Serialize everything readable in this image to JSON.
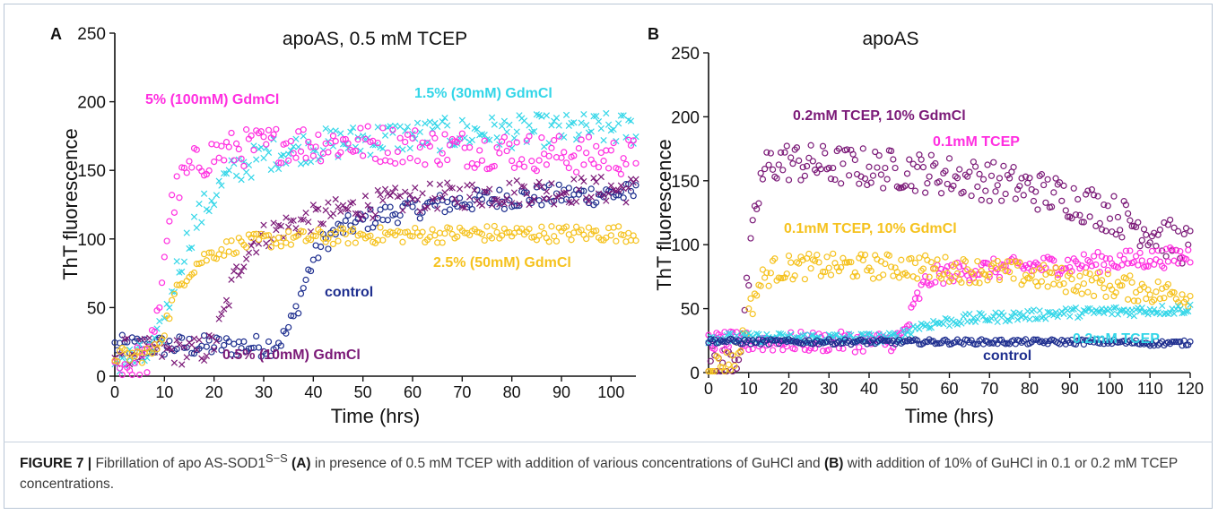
{
  "chart_data": [
    {
      "panel_label": "A",
      "type": "scatter",
      "title": "apoAS, 0.5 mM TCEP",
      "xlabel": "Time (hrs)",
      "ylabel": "ThT fluorescence",
      "xlim": [
        0,
        105
      ],
      "ylim": [
        0,
        250
      ],
      "xticks": [
        0,
        10,
        20,
        30,
        40,
        50,
        60,
        70,
        80,
        90,
        100
      ],
      "yticks": [
        0,
        50,
        100,
        150,
        200,
        250
      ],
      "grid": false,
      "series": [
        {
          "name": "control",
          "color": "#1f2f8f",
          "marker": "circle",
          "x": [
            0,
            5,
            10,
            15,
            20,
            25,
            30,
            32,
            34,
            36,
            38,
            40,
            42,
            44,
            46,
            50,
            55,
            60,
            65,
            70,
            75,
            80,
            85,
            90,
            95,
            100,
            105
          ],
          "y": [
            22,
            22,
            22,
            22,
            22,
            22,
            22,
            23,
            28,
            42,
            65,
            85,
            97,
            104,
            108,
            113,
            118,
            122,
            125,
            127,
            129,
            130,
            131,
            132,
            132,
            133,
            133
          ]
        },
        {
          "name": "0.5% (10mM) GdmCl",
          "color": "#7b1a78",
          "marker": "x",
          "x": [
            0,
            5,
            10,
            15,
            18,
            20,
            22,
            24,
            26,
            28,
            30,
            32,
            35,
            40,
            45,
            50,
            55,
            60,
            65,
            70,
            75,
            80,
            85,
            90,
            95,
            100,
            105
          ],
          "y": [
            18,
            18,
            18,
            18,
            19,
            24,
            45,
            70,
            88,
            98,
            102,
            106,
            110,
            115,
            120,
            124,
            127,
            129,
            131,
            132,
            133,
            134,
            135,
            135,
            136,
            136,
            136
          ]
        },
        {
          "name": "1.5% (30mM) GdmCl",
          "color": "#33d6e8",
          "marker": "x",
          "x": [
            0,
            5,
            8,
            10,
            12,
            14,
            16,
            18,
            20,
            22,
            25,
            30,
            35,
            40,
            45,
            50,
            55,
            60,
            65,
            70,
            75,
            80,
            85,
            90,
            95,
            100,
            105
          ],
          "y": [
            12,
            12,
            18,
            40,
            70,
            92,
            110,
            122,
            132,
            142,
            152,
            160,
            165,
            168,
            170,
            172,
            174,
            175,
            176,
            177,
            178,
            178,
            179,
            179,
            180,
            180,
            180
          ]
        },
        {
          "name": "5% (100mM) GdmCl",
          "color": "#ff2fe0",
          "marker": "circle",
          "x": [
            0,
            3,
            6,
            8,
            9,
            10,
            11,
            12,
            14,
            16,
            18,
            20,
            25,
            30,
            35,
            40,
            45,
            50,
            55,
            60,
            65,
            70,
            75,
            80,
            85,
            90,
            95,
            100,
            105
          ],
          "y": [
            8,
            8,
            10,
            25,
            55,
            90,
            115,
            130,
            145,
            153,
            158,
            162,
            166,
            168,
            170,
            170,
            170,
            170,
            169,
            168,
            167,
            166,
            165,
            164,
            163,
            162,
            161,
            160,
            160
          ]
        },
        {
          "name": "2.5% (50mM) GdmCl",
          "color": "#f5c21f",
          "marker": "circle",
          "x": [
            0,
            5,
            8,
            10,
            12,
            14,
            16,
            18,
            20,
            22,
            25,
            30,
            35,
            40,
            45,
            50,
            55,
            60,
            65,
            70,
            75,
            80,
            85,
            90,
            95,
            100,
            105
          ],
          "y": [
            15,
            15,
            18,
            35,
            58,
            72,
            80,
            86,
            90,
            93,
            96,
            99,
            100,
            101,
            102,
            102,
            103,
            103,
            103,
            104,
            104,
            104,
            104,
            104,
            104,
            104,
            104
          ]
        }
      ]
    },
    {
      "panel_label": "B",
      "type": "scatter",
      "title": "apoAS",
      "xlabel": "Time (hrs)",
      "ylabel": "ThT fluorescence",
      "xlim": [
        0,
        120
      ],
      "ylim": [
        0,
        250
      ],
      "xticks": [
        0,
        10,
        20,
        30,
        40,
        50,
        60,
        70,
        80,
        90,
        100,
        110,
        120
      ],
      "yticks": [
        0,
        50,
        100,
        150,
        200,
        250
      ],
      "grid": false,
      "series": [
        {
          "name": "0.2mM TCEP, 10% GdmCl",
          "color": "#7b1a78",
          "marker": "circle",
          "x": [
            0,
            3,
            5,
            7,
            8,
            9,
            10,
            11,
            12,
            13,
            14,
            15,
            18,
            20,
            25,
            30,
            35,
            40,
            45,
            50,
            55,
            60,
            65,
            70,
            75,
            80,
            85,
            90,
            95,
            100,
            105,
            110,
            115,
            120
          ],
          "y": [
            6,
            6,
            7,
            12,
            25,
            45,
            75,
            105,
            130,
            148,
            158,
            162,
            165,
            165,
            163,
            162,
            161,
            160,
            159,
            158,
            156,
            154,
            152,
            150,
            147,
            144,
            140,
            136,
            131,
            125,
            118,
            111,
            104,
            98
          ]
        },
        {
          "name": "0.1mM TCEP",
          "color": "#ff2fe0",
          "marker": "circle",
          "x": [
            0,
            5,
            10,
            20,
            30,
            40,
            45,
            48,
            50,
            52,
            54,
            56,
            58,
            60,
            65,
            70,
            75,
            80,
            85,
            90,
            95,
            100,
            105,
            110,
            115,
            120
          ],
          "y": [
            24,
            24,
            24,
            24,
            24,
            24,
            24,
            28,
            40,
            58,
            70,
            75,
            77,
            78,
            80,
            81,
            82,
            83,
            84,
            85,
            86,
            87,
            88,
            89,
            90,
            92
          ]
        },
        {
          "name": "0.1mM TCEP, 10% GdmCl",
          "color": "#f5c21f",
          "marker": "circle",
          "x": [
            0,
            3,
            6,
            8,
            10,
            12,
            14,
            16,
            20,
            25,
            30,
            35,
            40,
            45,
            50,
            55,
            60,
            65,
            70,
            75,
            80,
            85,
            90,
            95,
            100,
            105,
            110,
            115,
            120
          ],
          "y": [
            6,
            6,
            10,
            22,
            45,
            65,
            75,
            80,
            82,
            83,
            83,
            83,
            83,
            83,
            83,
            82,
            81,
            80,
            79,
            78,
            76,
            74,
            72,
            70,
            68,
            66,
            64,
            62,
            60
          ]
        },
        {
          "name": "0.2mM TCEP",
          "color": "#33d6e8",
          "marker": "x",
          "x": [
            0,
            5,
            10,
            20,
            30,
            40,
            45,
            48,
            50,
            52,
            55,
            60,
            65,
            70,
            75,
            80,
            85,
            90,
            95,
            100,
            105,
            110,
            115,
            120
          ],
          "y": [
            27,
            27,
            27,
            27,
            27,
            27,
            27,
            29,
            33,
            36,
            38,
            40,
            42,
            43,
            44,
            45,
            46,
            47,
            47,
            48,
            48,
            49,
            49,
            50
          ]
        },
        {
          "name": "control",
          "color": "#1f2f8f",
          "marker": "circle",
          "x": [
            0,
            10,
            20,
            30,
            40,
            50,
            60,
            70,
            80,
            90,
            100,
            110,
            120
          ],
          "y": [
            25,
            24,
            24,
            24,
            24,
            24,
            24,
            24,
            24,
            24,
            24,
            23,
            23
          ]
        }
      ]
    }
  ],
  "caption": {
    "label": "FIGURE 7 |",
    "t1": " Fibrillation of apo AS-SOD1",
    "sup": "S−S",
    "b1": " (A)",
    "t2": " in presence of 0.5 mM TCEP with addition of various concentrations of GuHCl and ",
    "b2": "(B)",
    "t3": " with addition of 10% of GuHCl in 0.1 or 0.2 mM TCEP concentrations."
  }
}
